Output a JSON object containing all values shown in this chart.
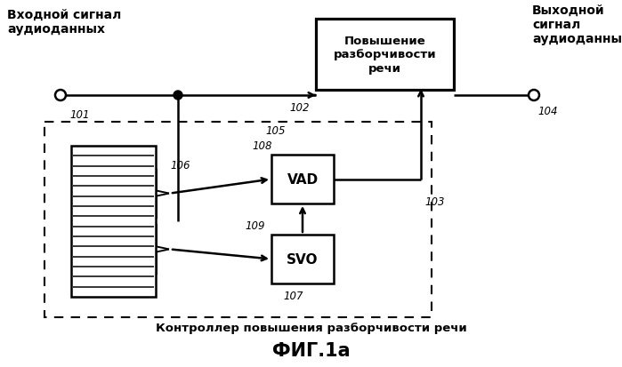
{
  "bg_color": "#ffffff",
  "title": "ФИГ.1а",
  "subtitle": "Контроллер повышения разборчивости речи",
  "top_left_text": "Входной сигнал\nаудиоданных",
  "top_right_text": "Выходной\nсигнал\nаудиоданных",
  "main_box_text": "Повышение\nразборчивости\nречи",
  "vad_label": "VAD",
  "svo_label": "SVO",
  "lbl_101": "101",
  "lbl_102": "102",
  "lbl_103": "103",
  "lbl_104": "104",
  "lbl_105": "105",
  "lbl_106": "106",
  "lbl_107": "107",
  "lbl_108": "108",
  "lbl_109": "109"
}
